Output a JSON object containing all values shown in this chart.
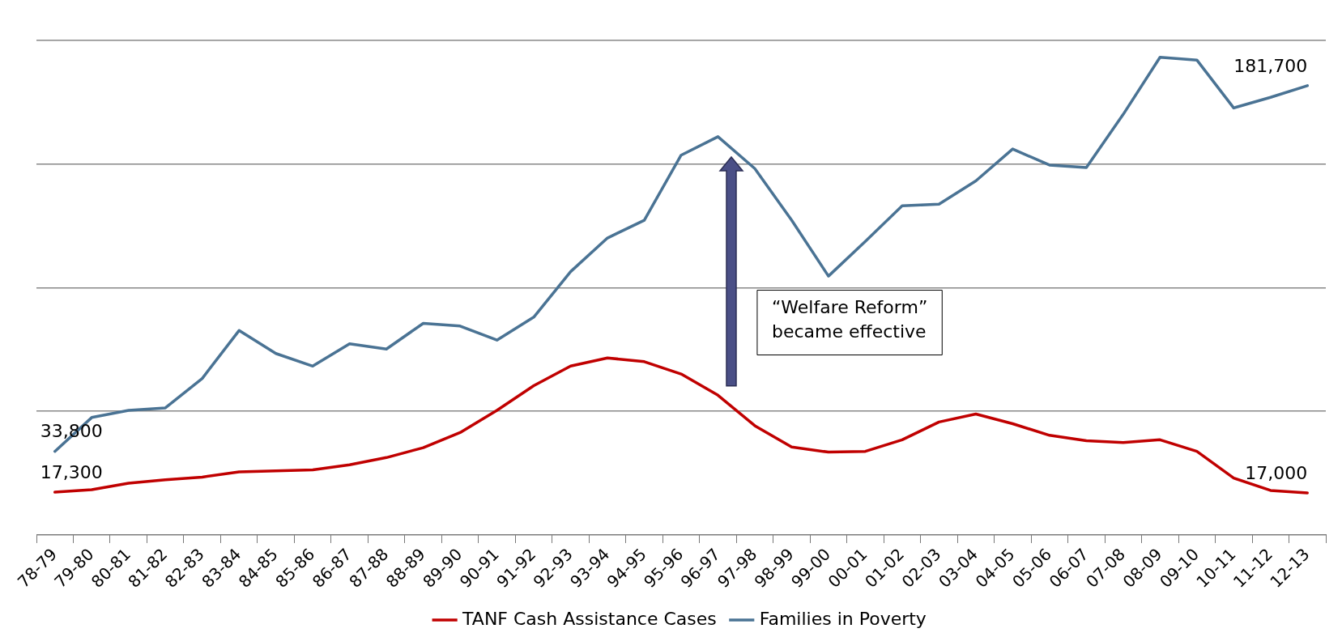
{
  "chart_data": {
    "type": "line",
    "categories": [
      "78-79",
      "79-80",
      "80-81",
      "81-82",
      "82-83",
      "83-84",
      "84-85",
      "85-86",
      "86-87",
      "87-88",
      "88-89",
      "89-90",
      "90-91",
      "91-92",
      "92-93",
      "93-94",
      "94-95",
      "95-96",
      "96-97",
      "97-98",
      "98-99",
      "99-00",
      "00-01",
      "01-02",
      "02-03",
      "03-04",
      "04-05",
      "05-06",
      "06-07",
      "07-08",
      "08-09",
      "09-10",
      "10-11",
      "11-12",
      "12-13"
    ],
    "series": [
      {
        "name": "TANF Cash Assistance Cases",
        "color": "#c00000",
        "values": [
          17300,
          18300,
          20900,
          22300,
          23400,
          25500,
          25900,
          26300,
          28400,
          31300,
          35300,
          41400,
          50400,
          60400,
          68300,
          71600,
          70100,
          65100,
          56500,
          44200,
          35600,
          33500,
          33800,
          38500,
          45700,
          48900,
          45000,
          40300,
          38100,
          37400,
          38500,
          33800,
          23000,
          18000,
          17000
        ],
        "value_labels": [
          "17,300",
          null,
          null,
          null,
          null,
          null,
          null,
          null,
          null,
          null,
          null,
          null,
          null,
          null,
          null,
          null,
          null,
          null,
          null,
          null,
          null,
          null,
          null,
          null,
          null,
          null,
          null,
          null,
          null,
          null,
          null,
          null,
          null,
          null,
          "17,000"
        ]
      },
      {
        "name": "Families in Poverty",
        "color": "#4a7394",
        "values": [
          33800,
          47500,
          50400,
          51400,
          63300,
          82700,
          73400,
          68300,
          77300,
          75200,
          85600,
          84500,
          78800,
          88100,
          106500,
          120100,
          127300,
          153600,
          161100,
          148200,
          127300,
          104700,
          118700,
          133100,
          133800,
          143200,
          156100,
          149600,
          148600,
          170100,
          193200,
          192100,
          172700,
          177000,
          181700
        ],
        "value_labels": [
          "33,800",
          null,
          null,
          null,
          null,
          null,
          null,
          null,
          null,
          null,
          null,
          null,
          null,
          null,
          null,
          null,
          null,
          null,
          null,
          null,
          null,
          null,
          null,
          null,
          null,
          null,
          null,
          null,
          null,
          null,
          null,
          null,
          null,
          null,
          "181,700"
        ]
      }
    ],
    "ylim": [
      0,
      200000
    ],
    "yticks": [
      {
        "value": 0,
        "label": null
      },
      {
        "value": 50000,
        "label": null
      },
      {
        "value": 100000,
        "label": null
      },
      {
        "value": 150000,
        "label": null
      },
      {
        "value": 200000,
        "label": null
      }
    ],
    "tick_labels": "x",
    "grid": "y",
    "legend": "bottom",
    "marker": "none",
    "line_style": "solid",
    "annotations": [
      "“Welfare Reform”\nbecame effective"
    ]
  }
}
